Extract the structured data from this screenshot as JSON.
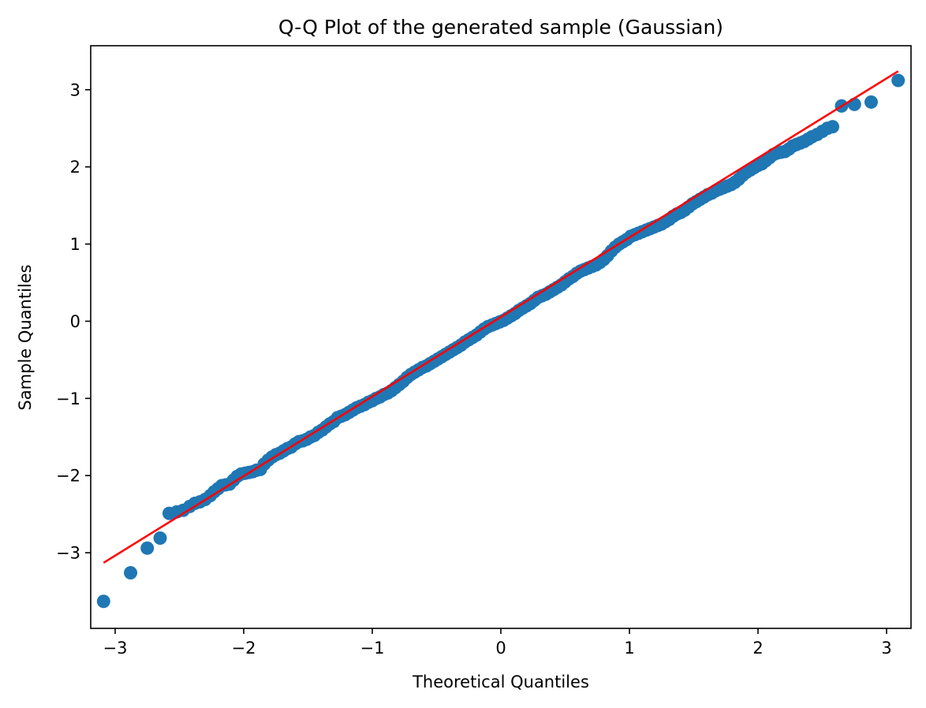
{
  "chart_data": {
    "type": "scatter",
    "title": "Q-Q Plot of the generated sample (Gaussian)",
    "xlabel": "Theoretical Quantiles",
    "ylabel": "Sample Quantiles",
    "xlim": [
      -3.19,
      3.19
    ],
    "ylim": [
      -3.98,
      3.57
    ],
    "xticks": [
      -3,
      -2,
      -1,
      0,
      1,
      2,
      3
    ],
    "yticks": [
      -3,
      -2,
      -1,
      0,
      1,
      2,
      3
    ],
    "tick_labels_x": [
      "−3",
      "−2",
      "−1",
      "0",
      "1",
      "2",
      "3"
    ],
    "tick_labels_y": [
      "−3",
      "−2",
      "−1",
      "0",
      "1",
      "2",
      "3"
    ],
    "grid": false,
    "series": [
      {
        "kind": "points",
        "color": "#1f77b4",
        "points": [
          [
            -3.09,
            -3.63
          ],
          [
            -2.88,
            -3.26
          ],
          [
            -2.75,
            -2.94
          ],
          [
            -2.65,
            -2.81
          ],
          [
            -2.58,
            -2.49
          ],
          [
            -2.52,
            -2.47
          ],
          [
            -2.47,
            -2.45
          ],
          [
            -2.42,
            -2.4
          ],
          [
            -2.38,
            -2.36
          ],
          [
            -2.34,
            -2.34
          ],
          [
            -2.3,
            -2.31
          ],
          [
            -2.26,
            -2.26
          ],
          [
            -2.23,
            -2.21
          ],
          [
            -2.2,
            -2.17
          ],
          [
            -2.17,
            -2.13
          ],
          [
            -2.14,
            -2.12
          ],
          [
            -2.11,
            -2.11
          ],
          [
            -2.08,
            -2.06
          ],
          [
            -2.05,
            -2.01
          ],
          [
            -2.02,
            -1.98
          ],
          [
            -1.99,
            -1.97
          ],
          [
            -1.96,
            -1.96
          ],
          [
            -1.93,
            -1.95
          ],
          [
            -1.9,
            -1.93
          ],
          [
            -1.87,
            -1.92
          ],
          [
            -1.84,
            -1.85
          ],
          [
            -1.81,
            -1.8
          ],
          [
            -1.78,
            -1.76
          ],
          [
            -1.75,
            -1.73
          ],
          [
            -1.72,
            -1.71
          ],
          [
            -1.69,
            -1.68
          ],
          [
            -1.66,
            -1.65
          ],
          [
            -1.63,
            -1.63
          ],
          [
            -1.6,
            -1.59
          ],
          [
            -1.57,
            -1.56
          ],
          [
            -1.54,
            -1.55
          ],
          [
            -1.51,
            -1.53
          ],
          [
            -1.48,
            -1.5
          ],
          [
            -1.45,
            -1.48
          ],
          [
            -1.42,
            -1.44
          ],
          [
            -1.39,
            -1.41
          ],
          [
            -1.36,
            -1.37
          ],
          [
            -1.33,
            -1.33
          ],
          [
            -1.3,
            -1.3
          ],
          [
            -1.27,
            -1.25
          ],
          [
            -1.24,
            -1.23
          ],
          [
            -1.21,
            -1.21
          ],
          [
            -1.18,
            -1.18
          ],
          [
            -1.15,
            -1.15
          ],
          [
            -1.12,
            -1.12
          ],
          [
            -1.09,
            -1.1
          ],
          [
            -1.06,
            -1.08
          ],
          [
            -1.03,
            -1.05
          ],
          [
            -1.0,
            -1.03
          ],
          [
            -0.97,
            -1.0
          ],
          [
            -0.94,
            -0.98
          ],
          [
            -0.91,
            -0.95
          ],
          [
            -0.88,
            -0.93
          ],
          [
            -0.85,
            -0.9
          ],
          [
            -0.82,
            -0.86
          ],
          [
            -0.79,
            -0.82
          ],
          [
            -0.76,
            -0.78
          ],
          [
            -0.73,
            -0.73
          ],
          [
            -0.7,
            -0.69
          ],
          [
            -0.67,
            -0.66
          ],
          [
            -0.64,
            -0.63
          ],
          [
            -0.61,
            -0.6
          ],
          [
            -0.58,
            -0.58
          ],
          [
            -0.55,
            -0.55
          ],
          [
            -0.52,
            -0.52
          ],
          [
            -0.49,
            -0.49
          ],
          [
            -0.46,
            -0.46
          ],
          [
            -0.43,
            -0.43
          ],
          [
            -0.4,
            -0.4
          ],
          [
            -0.37,
            -0.37
          ],
          [
            -0.34,
            -0.34
          ],
          [
            -0.31,
            -0.31
          ],
          [
            -0.28,
            -0.27
          ],
          [
            -0.25,
            -0.24
          ],
          [
            -0.22,
            -0.21
          ],
          [
            -0.19,
            -0.18
          ],
          [
            -0.16,
            -0.14
          ],
          [
            -0.13,
            -0.1
          ],
          [
            -0.1,
            -0.07
          ],
          [
            -0.07,
            -0.05
          ],
          [
            -0.04,
            -0.03
          ],
          [
            -0.01,
            -0.01
          ],
          [
            0.02,
            0.01
          ],
          [
            0.05,
            0.04
          ],
          [
            0.08,
            0.07
          ],
          [
            0.11,
            0.1
          ],
          [
            0.14,
            0.14
          ],
          [
            0.17,
            0.17
          ],
          [
            0.2,
            0.2
          ],
          [
            0.23,
            0.23
          ],
          [
            0.26,
            0.27
          ],
          [
            0.29,
            0.31
          ],
          [
            0.32,
            0.33
          ],
          [
            0.35,
            0.35
          ],
          [
            0.38,
            0.38
          ],
          [
            0.41,
            0.41
          ],
          [
            0.44,
            0.44
          ],
          [
            0.47,
            0.47
          ],
          [
            0.5,
            0.51
          ],
          [
            0.53,
            0.55
          ],
          [
            0.56,
            0.58
          ],
          [
            0.59,
            0.62
          ],
          [
            0.62,
            0.65
          ],
          [
            0.65,
            0.67
          ],
          [
            0.68,
            0.69
          ],
          [
            0.71,
            0.71
          ],
          [
            0.74,
            0.73
          ],
          [
            0.77,
            0.76
          ],
          [
            0.8,
            0.8
          ],
          [
            0.83,
            0.85
          ],
          [
            0.86,
            0.91
          ],
          [
            0.89,
            0.96
          ],
          [
            0.92,
            1.0
          ],
          [
            0.95,
            1.03
          ],
          [
            0.98,
            1.06
          ],
          [
            1.01,
            1.1
          ],
          [
            1.04,
            1.12
          ],
          [
            1.07,
            1.14
          ],
          [
            1.1,
            1.16
          ],
          [
            1.13,
            1.18
          ],
          [
            1.16,
            1.2
          ],
          [
            1.19,
            1.22
          ],
          [
            1.22,
            1.24
          ],
          [
            1.25,
            1.26
          ],
          [
            1.28,
            1.29
          ],
          [
            1.31,
            1.32
          ],
          [
            1.34,
            1.36
          ],
          [
            1.37,
            1.39
          ],
          [
            1.4,
            1.41
          ],
          [
            1.43,
            1.44
          ],
          [
            1.46,
            1.48
          ],
          [
            1.49,
            1.52
          ],
          [
            1.52,
            1.55
          ],
          [
            1.55,
            1.58
          ],
          [
            1.58,
            1.61
          ],
          [
            1.61,
            1.64
          ],
          [
            1.64,
            1.66
          ],
          [
            1.67,
            1.69
          ],
          [
            1.7,
            1.71
          ],
          [
            1.73,
            1.73
          ],
          [
            1.76,
            1.75
          ],
          [
            1.79,
            1.77
          ],
          [
            1.82,
            1.8
          ],
          [
            1.85,
            1.84
          ],
          [
            1.88,
            1.89
          ],
          [
            1.91,
            1.93
          ],
          [
            1.94,
            1.96
          ],
          [
            1.97,
            1.99
          ],
          [
            2.0,
            2.02
          ],
          [
            2.03,
            2.04
          ],
          [
            2.06,
            2.08
          ],
          [
            2.09,
            2.12
          ],
          [
            2.12,
            2.16
          ],
          [
            2.15,
            2.18
          ],
          [
            2.18,
            2.19
          ],
          [
            2.21,
            2.2
          ],
          [
            2.24,
            2.23
          ],
          [
            2.27,
            2.27
          ],
          [
            2.3,
            2.29
          ],
          [
            2.33,
            2.31
          ],
          [
            2.36,
            2.33
          ],
          [
            2.39,
            2.36
          ],
          [
            2.42,
            2.39
          ],
          [
            2.46,
            2.42
          ],
          [
            2.5,
            2.46
          ],
          [
            2.54,
            2.5
          ],
          [
            2.58,
            2.52
          ],
          [
            2.65,
            2.79
          ],
          [
            2.75,
            2.81
          ],
          [
            2.88,
            2.84
          ],
          [
            3.09,
            3.12
          ]
        ]
      },
      {
        "kind": "line",
        "color": "#ff0000",
        "x": [
          -3.09,
          3.09
        ],
        "y": [
          -3.13,
          3.24
        ]
      }
    ]
  }
}
